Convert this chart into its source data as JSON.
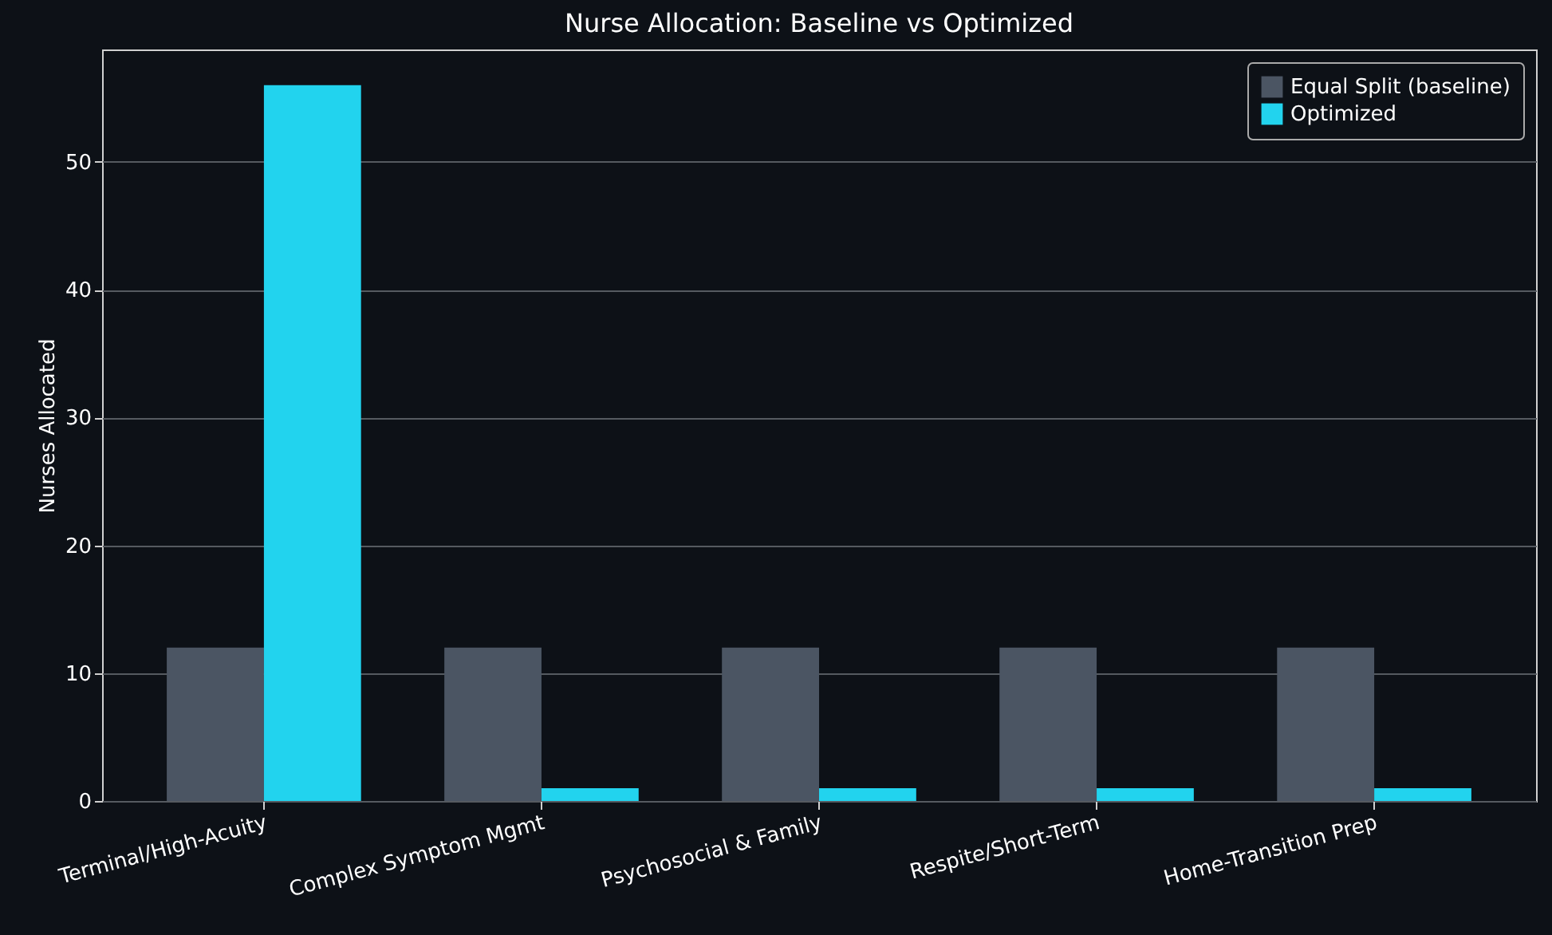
{
  "chart_data": {
    "type": "bar",
    "title": "Nurse Allocation: Baseline vs Optimized",
    "ylabel": "Nurses Allocated",
    "categories": [
      "Terminal/High-Acuity",
      "Complex Symptom Mgmt",
      "Psychosocial & Family",
      "Respite/Short-Term",
      "Home-Transition Prep"
    ],
    "series": [
      {
        "name": "Equal Split (baseline)",
        "color": "#4b5563",
        "values": [
          12,
          12,
          12,
          12,
          12
        ]
      },
      {
        "name": "Optimized",
        "color": "#22d3ee",
        "values": [
          56,
          1,
          1,
          1,
          1
        ]
      }
    ],
    "ylim": [
      0,
      58.8
    ],
    "yticks": [
      0,
      10,
      20,
      30,
      40,
      50
    ],
    "grid": "y",
    "legend": "top right"
  }
}
